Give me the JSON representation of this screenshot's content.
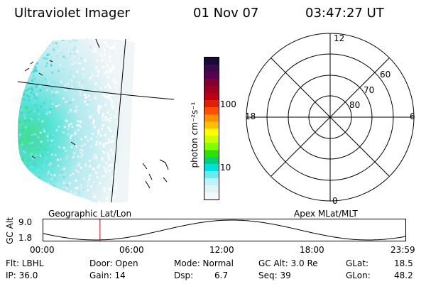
{
  "header": {
    "instrument": "Ultraviolet Imager",
    "date": "01 Nov 07",
    "time": "03:47:27 UT"
  },
  "colorbar": {
    "unit_label": "photon cm⁻²s⁻¹",
    "ticks": [
      "100",
      "10"
    ],
    "colors": [
      "#1a0a3a",
      "#3a0a4a",
      "#5a0050",
      "#800030",
      "#a00020",
      "#c00010",
      "#e02000",
      "#ff5000",
      "#ff9000",
      "#ffc000",
      "#ffff00",
      "#c8ff00",
      "#80ff00",
      "#30e000",
      "#00d080",
      "#00e0e0",
      "#70e8f0",
      "#c0f0f8",
      "#e0f4f8",
      "#f4f8fa"
    ]
  },
  "polar_plot": {
    "mlt_labels": {
      "top": "12",
      "left": "18",
      "right": "6",
      "bottom": "0"
    },
    "lat_labels": [
      "60",
      "70",
      "80"
    ],
    "caption": "Apex MLat/MLT"
  },
  "geo_plot": {
    "caption": "Geographic Lat/Lon"
  },
  "timeline": {
    "axis_label": "GC Alt",
    "y_ticks": [
      "9.0",
      "1.8"
    ],
    "x_ticks": [
      "00:00",
      "06:00",
      "12:00",
      "18:00",
      "23:59"
    ],
    "marker_hour": 3.79,
    "marker_color": "#cc0000"
  },
  "info": {
    "flt": "Flt: LBHL",
    "ip": "IP: 36.0",
    "door": "Door: Open",
    "gain": "Gain: 14",
    "mode": "Mode: Normal",
    "dsp_label": "Dsp:",
    "dsp_value": "6.7",
    "gc_alt": "GC Alt: 3.0 Re",
    "seq": "Seq: 39",
    "glat_label": "GLat:",
    "glat_value": "18.5",
    "glon_label": "GLon:",
    "glon_value": "48.2"
  }
}
